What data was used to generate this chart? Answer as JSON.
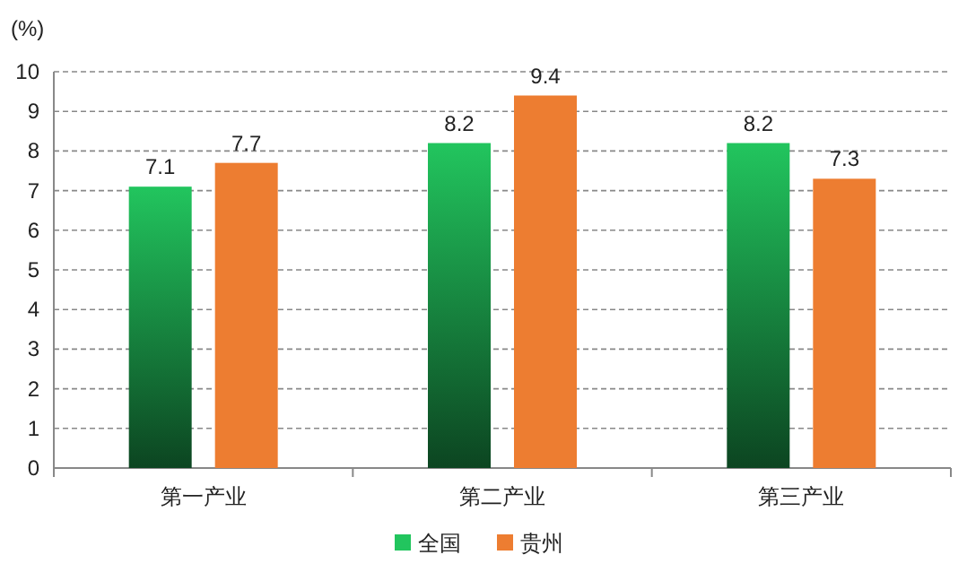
{
  "chart_data": {
    "type": "bar",
    "ylabel": "(%)",
    "categories": [
      "第一产业",
      "第二产业",
      "第三产业"
    ],
    "series": [
      {
        "name": "全国",
        "color": "#22c55e",
        "values": [
          7.1,
          8.2,
          8.2
        ]
      },
      {
        "name": "贵州",
        "color": "#ed7d31",
        "values": [
          7.7,
          9.4,
          7.3
        ]
      }
    ],
    "ylim": [
      0,
      10
    ],
    "yticks": [
      0,
      1,
      2,
      3,
      4,
      5,
      6,
      7,
      8,
      9,
      10
    ],
    "grid": "y",
    "data_labels": true,
    "legend": "bottom"
  }
}
